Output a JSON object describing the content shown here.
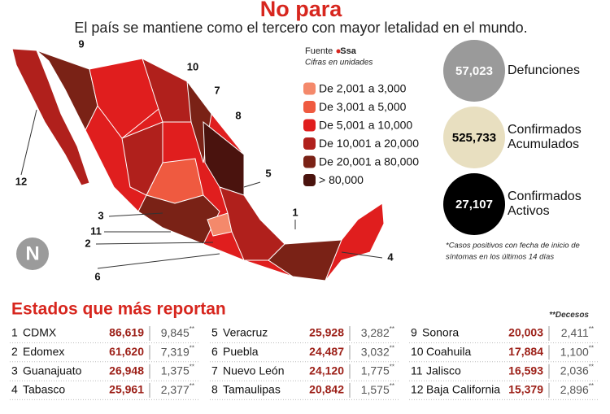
{
  "header": {
    "title": "No para",
    "subtitle": "El país se mantiene como el tercero con mayor letalidad en el mundo."
  },
  "logo": "N",
  "map": {
    "labels": [
      "9",
      "10",
      "7",
      "8",
      "5",
      "1",
      "4",
      "6",
      "2",
      "11",
      "3",
      "12"
    ]
  },
  "legend": {
    "source_label": "Fuente",
    "source": "Ssa",
    "note": "Cifras en unidades",
    "items": [
      {
        "label": "De 2,001 a 3,000",
        "color": "#f4896b"
      },
      {
        "label": "De 3,001 a 5,000",
        "color": "#ef5a40"
      },
      {
        "label": "De 5,001 a 10,000",
        "color": "#e01e1e"
      },
      {
        "label": "De 10,001 a 20,000",
        "color": "#b0201c"
      },
      {
        "label": "De 20,001 a 80,000",
        "color": "#7a2216"
      },
      {
        "label": "> 80,000",
        "color": "#4a130e"
      }
    ]
  },
  "stats": [
    {
      "value": "57,023",
      "label": [
        "Defunciones"
      ],
      "color": "#9a9a9a",
      "text_color": "#ffffff"
    },
    {
      "value": "525,733",
      "label": [
        "Confirmados",
        "Acumulados"
      ],
      "color": "#e8dfc0",
      "text_color": "#000000"
    },
    {
      "value": "27,107",
      "label": [
        "Confirmados",
        "Activos"
      ],
      "color": "#000000",
      "text_color": "#ffffff"
    }
  ],
  "stats_note": [
    "*Casos positivos con fecha de inicio de",
    "síntomas en los últimos 14 días"
  ],
  "table": {
    "title": "Estados que más reportan",
    "marker": "**",
    "deaths_note": "Decesos",
    "rows": [
      {
        "rank": "1",
        "state": "CDMX",
        "cases": "86,619",
        "deaths": "9,845"
      },
      {
        "rank": "2",
        "state": "Edomex",
        "cases": "61,620",
        "deaths": "7,319"
      },
      {
        "rank": "3",
        "state": "Guanajuato",
        "cases": "26,948",
        "deaths": "1,375"
      },
      {
        "rank": "4",
        "state": "Tabasco",
        "cases": "25,961",
        "deaths": "2,377"
      },
      {
        "rank": "5",
        "state": "Veracruz",
        "cases": "25,928",
        "deaths": "3,282"
      },
      {
        "rank": "6",
        "state": "Puebla",
        "cases": "24,487",
        "deaths": "3,032"
      },
      {
        "rank": "7",
        "state": "Nuevo León",
        "cases": "24,120",
        "deaths": "1,775"
      },
      {
        "rank": "8",
        "state": "Tamaulipas",
        "cases": "20,842",
        "deaths": "1,575"
      },
      {
        "rank": "9",
        "state": "Sonora",
        "cases": "20,003",
        "deaths": "2,411"
      },
      {
        "rank": "10",
        "state": "Coahuila",
        "cases": "17,884",
        "deaths": "1,100"
      },
      {
        "rank": "11",
        "state": "Jalisco",
        "cases": "16,593",
        "deaths": "2,036"
      },
      {
        "rank": "12",
        "state": "Baja California",
        "cases": "15,379",
        "deaths": "2,896"
      }
    ]
  }
}
